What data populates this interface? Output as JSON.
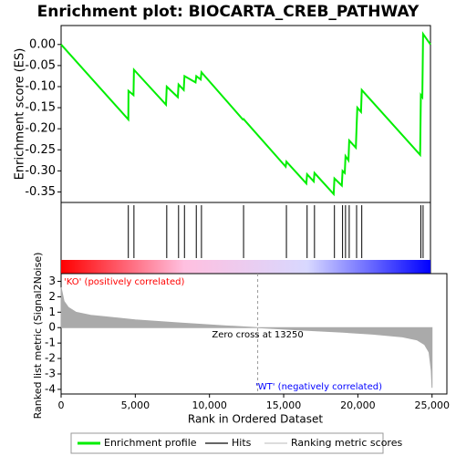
{
  "chart_data": [
    {
      "type": "line",
      "title": "Enrichment plot: BIOCARTA_CREB_PATHWAY",
      "y_label": "Enrichment score (ES)",
      "series": [
        {
          "name": "Enrichment profile",
          "color": "#00ee00",
          "x": [
            0,
            4550,
            4560,
            4900,
            4930,
            7100,
            7150,
            7900,
            7950,
            8300,
            8350,
            9100,
            9150,
            9450,
            9500,
            12300,
            12350,
            15200,
            15250,
            16600,
            16650,
            17100,
            17150,
            18450,
            18500,
            19000,
            19050,
            19200,
            19250,
            19450,
            19500,
            19950,
            20000,
            20050,
            20300,
            20350,
            24300,
            24350,
            24450,
            24500,
            25000
          ],
          "values": [
            0,
            -0.178,
            -0.11,
            -0.12,
            -0.06,
            -0.143,
            -0.1,
            -0.125,
            -0.095,
            -0.108,
            -0.075,
            -0.09,
            -0.075,
            -0.083,
            -0.066,
            -0.178,
            -0.177,
            -0.29,
            -0.278,
            -0.33,
            -0.308,
            -0.325,
            -0.305,
            -0.355,
            -0.318,
            -0.335,
            -0.3,
            -0.305,
            -0.265,
            -0.275,
            -0.228,
            -0.245,
            -0.195,
            -0.15,
            -0.16,
            -0.108,
            -0.262,
            -0.12,
            -0.125,
            0.025,
            0
          ]
        }
      ],
      "xlim": [
        0,
        25000
      ],
      "ylim": [
        -0.375,
        0.045
      ],
      "yticks": [
        {
          "value": 0,
          "label": "0.00"
        },
        -0.05,
        {
          "value": -0.1,
          "label": "-0.10"
        },
        -0.15,
        {
          "value": -0.2,
          "label": "-0.20"
        },
        -0.25,
        {
          "value": -0.3,
          "label": "-0.30"
        },
        -0.35
      ]
    },
    {
      "type": "rug",
      "name": "Hits",
      "color": "#000000",
      "hits": [
        4550,
        4930,
        7150,
        7950,
        8350,
        9150,
        9500,
        12350,
        15250,
        16650,
        17150,
        18500,
        19050,
        19250,
        19500,
        20000,
        20350,
        24350,
        24500
      ],
      "xlim": [
        0,
        25000
      ],
      "colors": [
        "#ff0000",
        "#ffc0e0",
        "#d8d8ff",
        "#0000ff"
      ]
    },
    {
      "type": "area",
      "y_label": "Ranked list metric (Signal2Noise)",
      "x_label": "Rank in Ordered Dataset",
      "series": [
        {
          "name": "Ranking metric scores",
          "color": "#aaaaaa",
          "x": [
            0,
            200,
            500,
            1000,
            2000,
            3000,
            5000,
            8000,
            11000,
            13250,
            16000,
            19000,
            21000,
            23000,
            24000,
            24500,
            24800,
            24950,
            25000
          ],
          "values": [
            2.6,
            1.7,
            1.3,
            1.0,
            0.8,
            0.7,
            0.5,
            0.3,
            0.12,
            0,
            -0.15,
            -0.3,
            -0.42,
            -0.6,
            -0.8,
            -1.1,
            -1.6,
            -2.8,
            -3.9
          ]
        }
      ],
      "xlim": [
        0,
        26000
      ],
      "ylim": [
        -4.3,
        3.5
      ],
      "xticks": [
        0,
        {
          "value": 5000,
          "label": "5,000"
        },
        {
          "value": 10000,
          "label": "10,000"
        },
        {
          "value": 15000,
          "label": "15,000"
        },
        {
          "value": 20000,
          "label": "20,000"
        },
        {
          "value": 25000,
          "label": "25,000"
        }
      ],
      "yticks": [
        3,
        2,
        1,
        0,
        -1,
        -2,
        -3,
        -4
      ],
      "zero_cross": 13250,
      "zero_cross_label": "Zero cross at 13250",
      "pos_label": "'KO' (positively correlated)",
      "neg_label": "'WT' (negatively correlated)"
    }
  ]
}
